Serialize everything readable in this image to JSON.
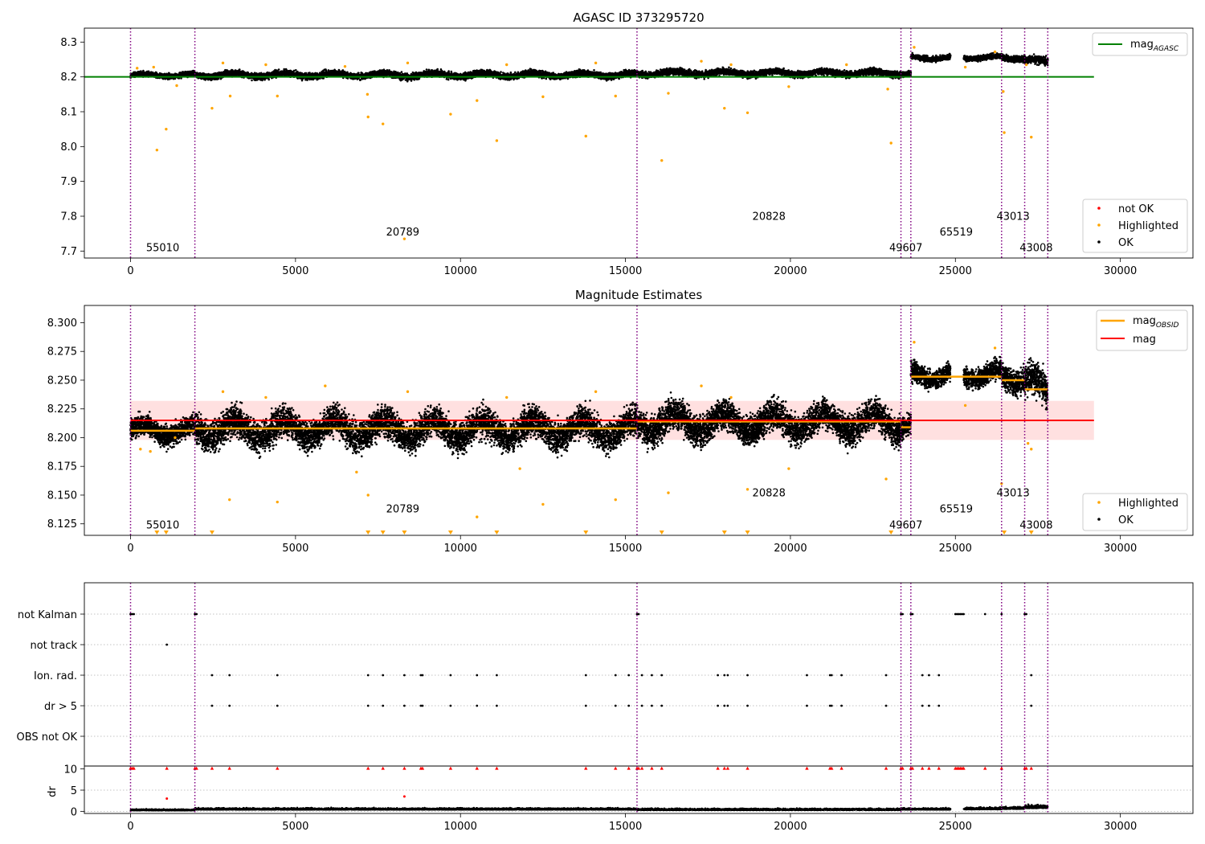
{
  "colors": {
    "ok": "#000000",
    "highlighted": "#ffa500",
    "not_ok": "#ff0000",
    "agasc_line": "#008000",
    "obsid_line": "#ffa500",
    "mag_line": "#ff0000",
    "mag_band": "#ffcccc",
    "obsid_divider": "#800080",
    "grid": "#b0b0b0"
  },
  "chart_data": [
    {
      "type": "scatter",
      "title": "AGASC ID 373295720",
      "xlim": [
        -1400,
        32200
      ],
      "ylim": [
        7.68,
        8.34
      ],
      "x_ticks": [
        0,
        5000,
        10000,
        15000,
        20000,
        25000,
        30000
      ],
      "y_ticks": [
        7.7,
        7.8,
        7.9,
        8.0,
        8.1,
        8.2,
        8.3
      ],
      "y_tick_decimals": 1,
      "agasc_mag": 8.2,
      "agasc_line_x": [
        -1400,
        29200
      ],
      "obsid_boundaries": [
        0,
        1950,
        15350,
        23350,
        23650,
        26400,
        27100,
        27800
      ],
      "obsid_labels": [
        {
          "text": "55010",
          "x": 975,
          "y": 7.7
        },
        {
          "text": "20789",
          "x": 8250,
          "y": 7.745
        },
        {
          "text": "20828",
          "x": 19350,
          "y": 7.79
        },
        {
          "text": "49607",
          "x": 23500,
          "y": 7.7
        },
        {
          "text": "65519",
          "x": 25025,
          "y": 7.745
        },
        {
          "text": "43013",
          "x": 26750,
          "y": 7.79
        },
        {
          "text": "43008",
          "x": 27450,
          "y": 7.7
        }
      ],
      "ok_segments": [
        {
          "x0": 0,
          "x1": 1950,
          "y": 8.205,
          "spread": 0.012
        },
        {
          "x0": 1950,
          "x1": 15350,
          "y": 8.206,
          "spread": 0.015
        },
        {
          "x0": 15350,
          "x1": 23350,
          "y": 8.211,
          "spread": 0.015
        },
        {
          "x0": 23350,
          "x1": 23650,
          "y": 8.207,
          "spread": 0.012
        },
        {
          "x0": 23650,
          "x1": 24850,
          "y": 8.255,
          "spread": 0.012
        },
        {
          "x0": 25250,
          "x1": 26400,
          "y": 8.256,
          "spread": 0.012
        },
        {
          "x0": 26400,
          "x1": 27100,
          "y": 8.255,
          "spread": 0.014
        },
        {
          "x0": 27100,
          "x1": 27800,
          "y": 8.245,
          "spread": 0.018
        }
      ],
      "highlighted_points": [
        [
          800,
          7.99
        ],
        [
          1080,
          8.05
        ],
        [
          2470,
          8.11
        ],
        [
          3020,
          8.145
        ],
        [
          4450,
          8.145
        ],
        [
          7200,
          8.085
        ],
        [
          7180,
          8.15
        ],
        [
          7650,
          8.065
        ],
        [
          8300,
          7.735
        ],
        [
          9700,
          8.093
        ],
        [
          10500,
          8.132
        ],
        [
          11100,
          8.017
        ],
        [
          12500,
          8.143
        ],
        [
          13800,
          8.03
        ],
        [
          14700,
          8.145
        ],
        [
          16100,
          7.96
        ],
        [
          16300,
          8.153
        ],
        [
          18000,
          8.11
        ],
        [
          18700,
          8.097
        ],
        [
          19950,
          8.172
        ],
        [
          22950,
          8.165
        ],
        [
          23050,
          8.01
        ],
        [
          26450,
          8.158
        ],
        [
          26480,
          8.04
        ],
        [
          27300,
          8.027
        ],
        [
          27150,
          8.235
        ],
        [
          25300,
          8.228
        ],
        [
          1400,
          8.175
        ],
        [
          2800,
          8.24
        ],
        [
          4100,
          8.235
        ],
        [
          6500,
          8.23
        ],
        [
          8400,
          8.24
        ],
        [
          11400,
          8.235
        ],
        [
          14100,
          8.24
        ],
        [
          17300,
          8.245
        ],
        [
          18200,
          8.235
        ],
        [
          21700,
          8.235
        ],
        [
          200,
          8.225
        ],
        [
          700,
          8.228
        ],
        [
          26200,
          8.272
        ],
        [
          23750,
          8.285
        ]
      ],
      "legend": {
        "position": "top-right",
        "entries": [
          "mag_AGASC"
        ]
      },
      "legend2": {
        "position": "lower-right",
        "entries": [
          "not OK",
          "Highlighted",
          "OK"
        ]
      }
    },
    {
      "type": "scatter",
      "title": "Magnitude Estimates",
      "xlim": [
        -1400,
        32200
      ],
      "ylim": [
        8.115,
        8.315
      ],
      "x_ticks": [
        0,
        5000,
        10000,
        15000,
        20000,
        25000,
        30000
      ],
      "y_ticks": [
        8.125,
        8.15,
        8.175,
        8.2,
        8.225,
        8.25,
        8.275,
        8.3
      ],
      "y_tick_decimals": 3,
      "mag": 8.215,
      "mag_band": [
        8.198,
        8.232
      ],
      "mag_line_x": [
        0,
        29200
      ],
      "obsid_mags": [
        {
          "x0": 0,
          "x1": 1950,
          "mag": 8.206
        },
        {
          "x0": 1950,
          "x1": 15350,
          "mag": 8.208
        },
        {
          "x0": 15350,
          "x1": 23350,
          "mag": 8.214
        },
        {
          "x0": 23350,
          "x1": 23650,
          "mag": 8.209
        },
        {
          "x0": 23650,
          "x1": 26400,
          "mag": 8.253
        },
        {
          "x0": 26400,
          "x1": 27100,
          "mag": 8.25
        },
        {
          "x0": 27100,
          "x1": 27800,
          "mag": 8.242
        }
      ],
      "obsid_boundaries": [
        0,
        1950,
        15350,
        23350,
        23650,
        26400,
        27100,
        27800
      ],
      "obsid_labels": [
        {
          "text": "55010",
          "x": 975,
          "y": 8.121
        },
        {
          "text": "20789",
          "x": 8250,
          "y": 8.135
        },
        {
          "text": "20828",
          "x": 19350,
          "y": 8.149
        },
        {
          "text": "49607",
          "x": 23500,
          "y": 8.121
        },
        {
          "text": "65519",
          "x": 25025,
          "y": 8.135
        },
        {
          "text": "43013",
          "x": 26750,
          "y": 8.149
        },
        {
          "text": "43008",
          "x": 27450,
          "y": 8.121
        }
      ],
      "ok_segments": [
        {
          "x0": 0,
          "x1": 1950,
          "y": 8.206,
          "spread": 0.015
        },
        {
          "x0": 1950,
          "x1": 15350,
          "y": 8.207,
          "spread": 0.022
        },
        {
          "x0": 15350,
          "x1": 23350,
          "y": 8.213,
          "spread": 0.022
        },
        {
          "x0": 23350,
          "x1": 23650,
          "y": 8.208,
          "spread": 0.015
        },
        {
          "x0": 23650,
          "x1": 24850,
          "y": 8.255,
          "spread": 0.014
        },
        {
          "x0": 25250,
          "x1": 26400,
          "y": 8.255,
          "spread": 0.014
        },
        {
          "x0": 26400,
          "x1": 27100,
          "y": 8.253,
          "spread": 0.018
        },
        {
          "x0": 27100,
          "x1": 27800,
          "y": 8.243,
          "spread": 0.025
        }
      ],
      "highlighted_points": [
        [
          3000,
          8.146
        ],
        [
          4450,
          8.144
        ],
        [
          7200,
          8.15
        ],
        [
          6850,
          8.17
        ],
        [
          10500,
          8.131
        ],
        [
          11800,
          8.173
        ],
        [
          12500,
          8.142
        ],
        [
          14700,
          8.146
        ],
        [
          16300,
          8.152
        ],
        [
          18700,
          8.155
        ],
        [
          19950,
          8.173
        ],
        [
          22900,
          8.164
        ],
        [
          27200,
          8.195
        ],
        [
          27300,
          8.19
        ],
        [
          26400,
          8.16
        ],
        [
          25300,
          8.228
        ],
        [
          2800,
          8.24
        ],
        [
          4100,
          8.235
        ],
        [
          5900,
          8.245
        ],
        [
          8400,
          8.24
        ],
        [
          11400,
          8.235
        ],
        [
          14100,
          8.24
        ],
        [
          17300,
          8.245
        ],
        [
          18200,
          8.235
        ],
        [
          300,
          8.19
        ],
        [
          600,
          8.188
        ],
        [
          1350,
          8.2
        ],
        [
          23750,
          8.283
        ],
        [
          26200,
          8.278
        ]
      ],
      "below_range_markers_x": [
        800,
        1080,
        2470,
        7200,
        7650,
        8300,
        9700,
        11100,
        13800,
        16100,
        18000,
        18700,
        23050,
        26480,
        27300
      ],
      "legend": {
        "position": "top-right",
        "entries": [
          "mag_OBSID",
          "mag"
        ]
      },
      "legend2": {
        "position": "lower-right",
        "entries": [
          "Highlighted",
          "OK"
        ]
      }
    },
    {
      "type": "scatter",
      "title": "",
      "xlim": [
        -1400,
        32200
      ],
      "x_ticks": [
        0,
        5000,
        10000,
        15000,
        20000,
        25000,
        30000
      ],
      "flag_rows": [
        "not Kalman",
        "not track",
        "Ion. rad.",
        "dr > 5",
        "OBS not OK"
      ],
      "flag_points": {
        "not Kalman": [
          0,
          50,
          100,
          1950,
          2000,
          15350,
          15400,
          23350,
          23400,
          23650,
          23700,
          25000,
          25050,
          25100,
          25150,
          25200,
          25250,
          25900,
          26400,
          27100,
          27150
        ],
        "not track": [
          1100
        ],
        "Ion. rad.": [
          2470,
          3000,
          4450,
          7200,
          7650,
          8300,
          8800,
          8850,
          9700,
          10500,
          11100,
          13800,
          14700,
          15100,
          15500,
          15800,
          16100,
          17800,
          18000,
          18100,
          18700,
          20500,
          21200,
          21250,
          21550,
          22900,
          24000,
          24200,
          24500,
          27300
        ],
        "dr > 5": [
          2470,
          3000,
          4450,
          7200,
          7650,
          8300,
          8800,
          8850,
          9700,
          10500,
          11100,
          13800,
          14700,
          15100,
          15500,
          15800,
          16100,
          17800,
          18000,
          18100,
          18700,
          20500,
          21200,
          21250,
          21550,
          22900,
          24000,
          24200,
          24500,
          27300
        ],
        "OBS not OK": []
      },
      "dr": {
        "ylim": [
          -0.5,
          10.5
        ],
        "y_ticks": [
          0,
          5,
          10
        ],
        "ylabel": "dr",
        "clipped_markers_x": [
          0,
          50,
          100,
          1100,
          1950,
          2000,
          2470,
          3000,
          4450,
          7200,
          7650,
          8300,
          8800,
          8850,
          9700,
          10500,
          11100,
          13800,
          14700,
          15100,
          15350,
          15400,
          15500,
          15800,
          16100,
          17800,
          18000,
          18100,
          18700,
          20500,
          21200,
          21250,
          21550,
          22900,
          23350,
          23400,
          23650,
          23700,
          24000,
          24200,
          24500,
          25000,
          25050,
          25100,
          25150,
          25200,
          25250,
          25900,
          26400,
          27100,
          27150,
          27300
        ],
        "outliers": [
          [
            1100,
            3.0
          ],
          [
            8300,
            3.5
          ]
        ],
        "ok_segments": [
          {
            "x0": 0,
            "x1": 1950,
            "y": 0.3,
            "spread": 0.3
          },
          {
            "x0": 1950,
            "x1": 15350,
            "y": 0.5,
            "spread": 0.4
          },
          {
            "x0": 15350,
            "x1": 23350,
            "y": 0.4,
            "spread": 0.4
          },
          {
            "x0": 23350,
            "x1": 24850,
            "y": 0.5,
            "spread": 0.4
          },
          {
            "x0": 25250,
            "x1": 26400,
            "y": 0.6,
            "spread": 0.5
          },
          {
            "x0": 26400,
            "x1": 27100,
            "y": 0.7,
            "spread": 0.5
          },
          {
            "x0": 27100,
            "x1": 27800,
            "y": 1.0,
            "spread": 0.9
          }
        ]
      },
      "obsid_boundaries": [
        0,
        1950,
        15350,
        23350,
        23650,
        26400,
        27100,
        27800
      ]
    }
  ],
  "legends": {
    "agasc_mag_base": "mag",
    "agasc_mag_sub": "AGASC",
    "obsid_mag_base": "mag",
    "obsid_mag_sub": "OBSID",
    "mag": "mag",
    "not_ok": "not OK",
    "highlighted": "Highlighted",
    "ok": "OK"
  }
}
